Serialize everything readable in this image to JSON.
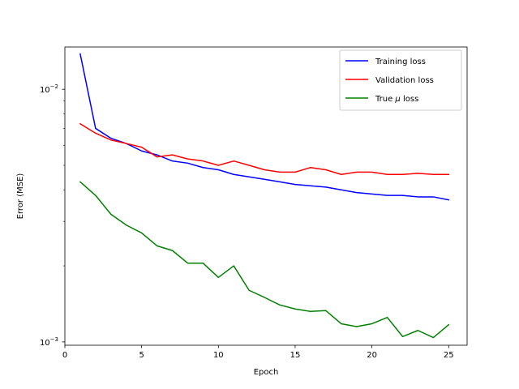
{
  "chart_data": {
    "type": "line",
    "xlabel": "Epoch",
    "ylabel": "Error (MSE)",
    "xlim": [
      0,
      26.2
    ],
    "ylim": [
      0.00097,
      0.0147
    ],
    "yscale": "log",
    "grid": false,
    "legend_position": "top-right",
    "xticks": [
      0,
      5,
      10,
      15,
      20,
      25
    ],
    "xtick_labels": [
      "0",
      "5",
      "10",
      "15",
      "20",
      "25"
    ],
    "yticks_major": [
      0.001,
      0.01
    ],
    "ytick_labels": [
      {
        "base": "10",
        "exp": "−3"
      },
      {
        "base": "10",
        "exp": "−2"
      }
    ],
    "x": [
      1,
      2,
      3,
      4,
      5,
      6,
      7,
      8,
      9,
      10,
      11,
      12,
      13,
      14,
      15,
      16,
      17,
      18,
      19,
      20,
      21,
      22,
      23,
      24,
      25
    ],
    "series": [
      {
        "name": "Training loss",
        "color": "#0000ff",
        "values": [
          0.0138,
          0.007,
          0.0064,
          0.0061,
          0.0057,
          0.0055,
          0.0052,
          0.0051,
          0.0049,
          0.0048,
          0.0046,
          0.0045,
          0.0044,
          0.0043,
          0.0042,
          0.00415,
          0.0041,
          0.004,
          0.0039,
          0.00385,
          0.0038,
          0.0038,
          0.00375,
          0.00375,
          0.00365
        ]
      },
      {
        "name": "Validation loss",
        "color": "#ff0000",
        "values": [
          0.0073,
          0.0067,
          0.0063,
          0.0061,
          0.0059,
          0.0054,
          0.0055,
          0.0053,
          0.0052,
          0.005,
          0.0052,
          0.005,
          0.0048,
          0.0047,
          0.0047,
          0.0049,
          0.0048,
          0.0046,
          0.0047,
          0.0047,
          0.0046,
          0.0046,
          0.00465,
          0.0046,
          0.0046
        ]
      },
      {
        "name": "True μ loss",
        "color": "#008000",
        "values": [
          0.0043,
          0.0038,
          0.0032,
          0.0029,
          0.0027,
          0.0024,
          0.0023,
          0.00205,
          0.00205,
          0.0018,
          0.002,
          0.0016,
          0.0015,
          0.0014,
          0.00135,
          0.00132,
          0.00133,
          0.00118,
          0.00115,
          0.00118,
          0.00125,
          0.00105,
          0.00111,
          0.00104,
          0.00117
        ]
      }
    ],
    "legend_entries": [
      {
        "label": "Training loss",
        "italic_symbol": false
      },
      {
        "prefix": "True ",
        "symbol": "μ",
        "suffix": " loss",
        "italic_symbol": true
      }
    ]
  }
}
